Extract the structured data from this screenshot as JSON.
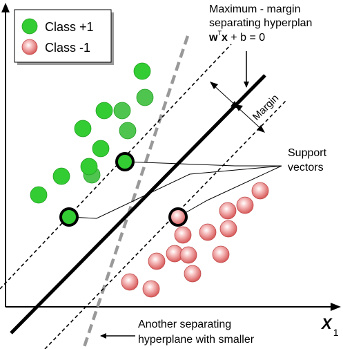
{
  "legend": {
    "class_pos": "Class +1",
    "class_neg": "Class -1",
    "color_pos": "#33cc33",
    "color_neg": "#ee8080"
  },
  "annotations": {
    "max_margin_line1": "Maximum - margin",
    "max_margin_line2": "separating hyperplan",
    "equation_w": "w",
    "equation_T": "T",
    "equation_x": "x",
    "equation_rest": " + b = 0",
    "margin": "Margin",
    "support_line1": "Support",
    "support_line2": "vectors",
    "another_line1": "Another separating",
    "another_line2": "hyperplane with smaller"
  },
  "axes": {
    "x_label": "X",
    "x_subscript": "1"
  },
  "colors": {
    "positive": "#33cc33",
    "negative": "#ee8080",
    "dashed_alt": "#999999"
  }
}
